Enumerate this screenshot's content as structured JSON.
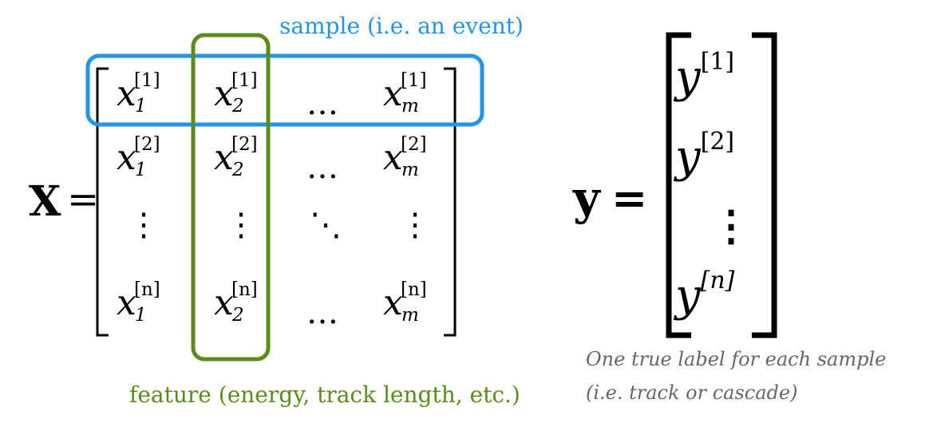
{
  "x_matrix": {
    "lhs": "X",
    "equals": "=",
    "base": "x",
    "rows": [
      {
        "sup": "[1]",
        "subs": [
          "1",
          "2",
          "m"
        ]
      },
      {
        "sup": "[2]",
        "subs": [
          "1",
          "2",
          "m"
        ]
      },
      {
        "sup": "[n]",
        "subs": [
          "1",
          "2",
          "m"
        ]
      }
    ],
    "hdots": "…",
    "vdots": "⋮",
    "ddots": "⋱"
  },
  "y_vector": {
    "lhs": "y",
    "equals": "=",
    "base": "y",
    "sups": [
      "[1]",
      "[2]",
      "[n]"
    ],
    "vdots": "⋮"
  },
  "annotations": {
    "sample_label": "sample (i.e. an event)",
    "feature_label": "feature (energy, track length, etc.)",
    "label_note_line1": "One true label for each sample",
    "label_note_line2": "(i.e. track or cascade)"
  },
  "colors": {
    "sample_highlight": "#2196e8",
    "feature_highlight": "#5b8c1a"
  }
}
